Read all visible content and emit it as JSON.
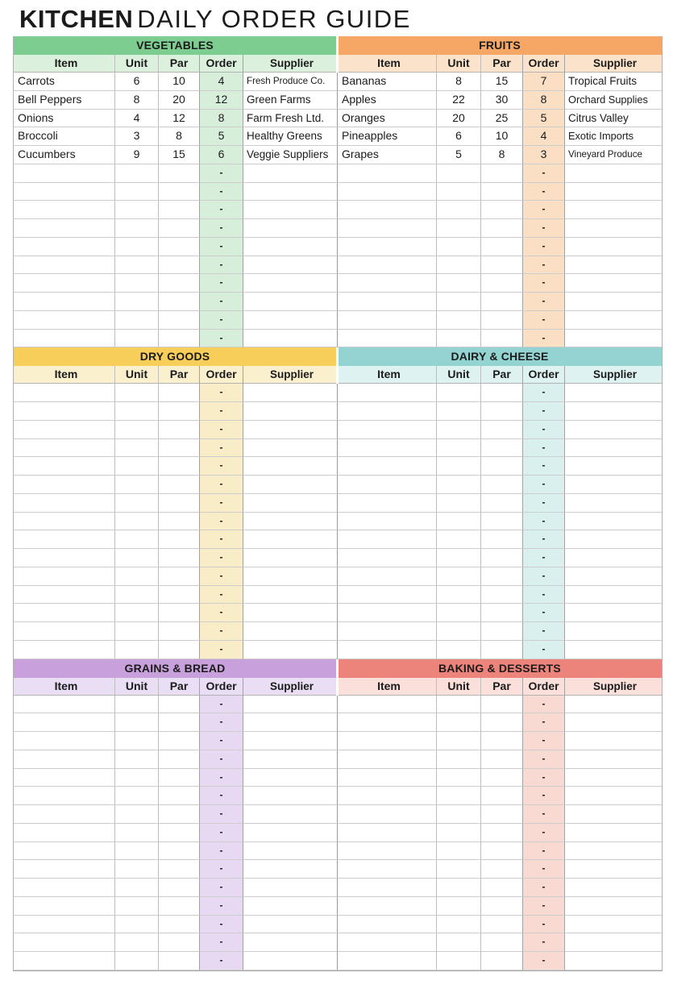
{
  "title": {
    "primary": "KITCHEN",
    "secondary": "DAILY ORDER GUIDE"
  },
  "columns": [
    "Item",
    "Unit",
    "Par",
    "Order",
    "Supplier"
  ],
  "empty_order_value": "-",
  "bands": [
    [
      {
        "name": "VEGETABLES",
        "colors": {
          "header": "#7ecd90",
          "subheader": "#dcf0de",
          "order_cell": "#d6eeda"
        },
        "rows": [
          {
            "item": "Carrots",
            "unit": "6",
            "par": "10",
            "order": "4",
            "supplier": "Fresh Produce Co.",
            "supplier_shrink": 2
          },
          {
            "item": "Bell Peppers",
            "unit": "8",
            "par": "20",
            "order": "12",
            "supplier": "Green Farms",
            "supplier_shrink": 0
          },
          {
            "item": "Onions",
            "unit": "4",
            "par": "12",
            "order": "8",
            "supplier": "Farm Fresh Ltd.",
            "supplier_shrink": 0
          },
          {
            "item": "Broccoli",
            "unit": "3",
            "par": "8",
            "order": "5",
            "supplier": "Healthy Greens",
            "supplier_shrink": 0
          },
          {
            "item": "Cucumbers",
            "unit": "9",
            "par": "15",
            "order": "6",
            "supplier": "Veggie Suppliers",
            "supplier_shrink": 0
          }
        ],
        "empty_rows": 10
      },
      {
        "name": "FRUITS",
        "colors": {
          "header": "#f6a765",
          "subheader": "#fbe3cb",
          "order_cell": "#fadfc4"
        },
        "rows": [
          {
            "item": "Bananas",
            "unit": "8",
            "par": "15",
            "order": "7",
            "supplier": "Tropical Fruits",
            "supplier_shrink": 0
          },
          {
            "item": "Apples",
            "unit": "22",
            "par": "30",
            "order": "8",
            "supplier": "Orchard Supplies",
            "supplier_shrink": 1
          },
          {
            "item": "Oranges",
            "unit": "20",
            "par": "25",
            "order": "5",
            "supplier": "Citrus Valley",
            "supplier_shrink": 0
          },
          {
            "item": "Pineapples",
            "unit": "6",
            "par": "10",
            "order": "4",
            "supplier": "Exotic Imports",
            "supplier_shrink": 1
          },
          {
            "item": "Grapes",
            "unit": "5",
            "par": "8",
            "order": "3",
            "supplier": "Vineyard Produce",
            "supplier_shrink": 2
          }
        ],
        "empty_rows": 10
      }
    ],
    [
      {
        "name": "DRY GOODS",
        "colors": {
          "header": "#f8ce5a",
          "subheader": "#faf0ce",
          "order_cell": "#f8edc7"
        },
        "rows": [],
        "empty_rows": 15
      },
      {
        "name": "DAIRY & CHEESE",
        "colors": {
          "header": "#93d4d2",
          "subheader": "#def2f1",
          "order_cell": "#d9f0ef"
        },
        "rows": [],
        "empty_rows": 15
      }
    ],
    [
      {
        "name": "GRAINS & BREAD",
        "colors": {
          "header": "#c8a1dc",
          "subheader": "#eadef4",
          "order_cell": "#e6d9f1"
        },
        "rows": [],
        "empty_rows": 15
      },
      {
        "name": "BAKING & DESSERTS",
        "colors": {
          "header": "#ec847b",
          "subheader": "#fbdfda",
          "order_cell": "#f9dad3"
        },
        "rows": [],
        "empty_rows": 15
      }
    ]
  ]
}
